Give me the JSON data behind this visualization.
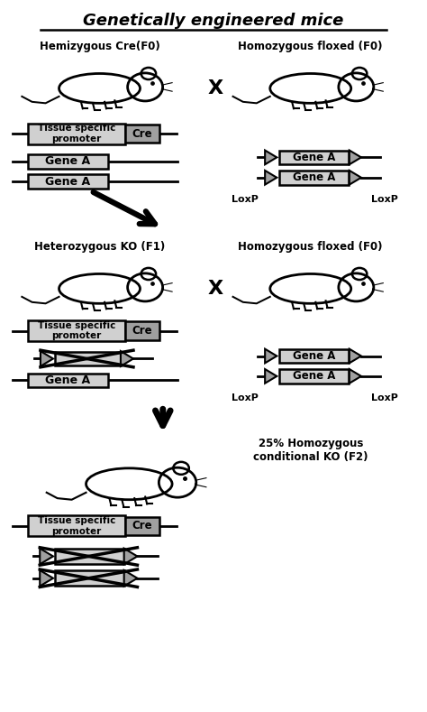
{
  "title": "Genetically engineered mice",
  "bg_color": "#ffffff",
  "lg": "#d0d0d0",
  "mg": "#a0a0a0",
  "section1_left_label": "Hemizygous Cre(F0)",
  "section1_right_label": "Homozygous floxed (F0)",
  "section2_left_label": "Heterozygous KO (F1)",
  "section2_right_label": "Homozygous floxed (F0)",
  "section3_label": "25% Homozygous\nconditional KO (F2)",
  "loxp_label": "LoxP",
  "gene_label": "Gene A",
  "cre_label": "Cre",
  "promoter_label": "Tissue specific\npromoter"
}
